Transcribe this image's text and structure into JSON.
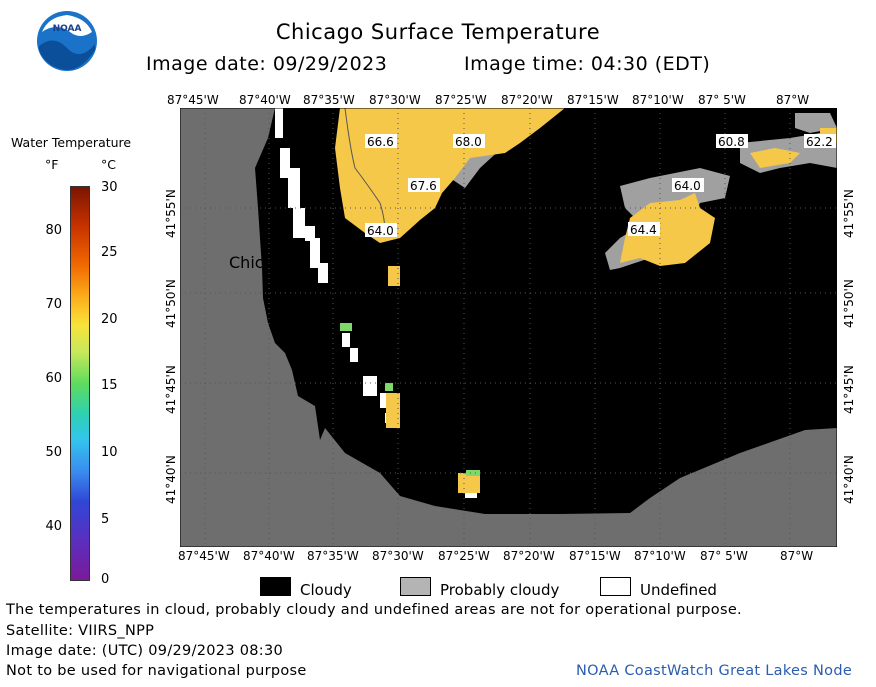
{
  "header": {
    "title": "Chicago Surface Temperature",
    "image_date": "Image date: 09/29/2023",
    "image_time": "Image time: 04:30 (EDT)"
  },
  "logo": {
    "text": "NOAA",
    "icon": "noaa-logo-icon"
  },
  "map": {
    "lon_labels": [
      "87°45'W",
      "87°40'W",
      "87°35'W",
      "87°30'W",
      "87°25'W",
      "87°20'W",
      "87°15'W",
      "87°10'W",
      "87° 5'W",
      "87°W"
    ],
    "lat_labels": [
      "41°55'N",
      "41°50'N",
      "41°45'N",
      "41°40'N"
    ],
    "city_label": "Chicago",
    "temperature_tags": [
      "66.6",
      "68.0",
      "67.6",
      "64.0",
      "60.8",
      "62.2",
      "64.0",
      "64.4"
    ],
    "colors": {
      "land": "#6e6e6e",
      "cloudy": "#000000",
      "probably_cloudy": "#999999",
      "undefined": "#ffffff",
      "warm_water": "#f5c84a"
    }
  },
  "legend": {
    "title": "Water Temperature",
    "unit_f": "°F",
    "unit_c": "°C",
    "ticks_f": [
      "80",
      "70",
      "60",
      "50",
      "40"
    ],
    "ticks_c": [
      "30",
      "25",
      "20",
      "15",
      "10",
      "5",
      "0"
    ],
    "keys": [
      {
        "label": "Cloudy",
        "color": "#000000"
      },
      {
        "label": "Probably cloudy",
        "color": "#b4b4b4"
      },
      {
        "label": "Undefined",
        "color": "#ffffff"
      }
    ]
  },
  "footer": {
    "note": "The temperatures in cloud, probably cloudy and undefined areas are not for operational purpose.",
    "satellite": "Satellite: VIIRS_NPP",
    "utc_date": "Image date: (UTC) 09/29/2023  08:30",
    "nav_warning": "Not to be used for navigational purpose",
    "credit": "NOAA CoastWatch Great Lakes Node"
  }
}
